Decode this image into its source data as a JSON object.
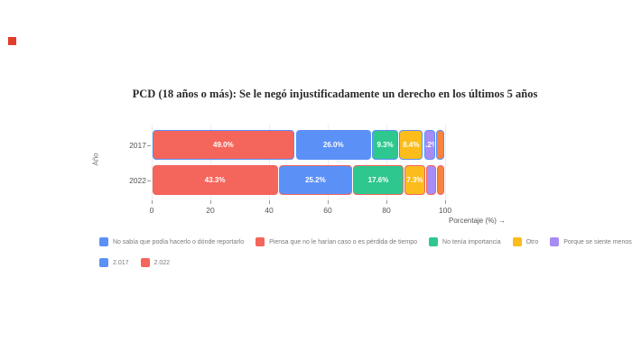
{
  "ui": {
    "corner_marker_color": "#e23c2a"
  },
  "chart_data": {
    "type": "bar",
    "orientation": "horizontal",
    "stacked": true,
    "title": "PCD (18 años o más): Se le negó injustificadamente un derecho en los últimos 5 años",
    "xlabel": "Porcentaje (%) →",
    "ylabel": "Año",
    "xlim": [
      0,
      100
    ],
    "grid": true,
    "x_ticks": [
      0,
      20,
      40,
      60,
      80,
      100
    ],
    "categories": [
      {
        "label": "2017",
        "outline_color": "#5B90F7",
        "legend_label": "2.017"
      },
      {
        "label": "2022",
        "outline_color": "#F4655C",
        "legend_label": "2.022"
      }
    ],
    "series": [
      {
        "name": "Piensa que no le harían caso o es pérdida de tiempo",
        "color": "#F4655C",
        "values": [
          49.0,
          43.3
        ],
        "value_labels": [
          "49.0%",
          "43.3%"
        ]
      },
      {
        "name": "No sabía que podía hacerlo o dónde reportarlo",
        "color": "#5B90F7",
        "values": [
          26.0,
          25.2
        ],
        "value_labels": [
          "26.0%",
          "25.2%"
        ]
      },
      {
        "name": "No tenía importancia",
        "color": "#2EC78E",
        "values": [
          9.3,
          17.6
        ],
        "value_labels": [
          "9.3%",
          "17.6%"
        ]
      },
      {
        "name": "Otro",
        "color": "#FBBC1C",
        "values": [
          8.4,
          7.3
        ],
        "value_labels": [
          "8.4%",
          "7.3%"
        ]
      },
      {
        "name": "Porque se siente menos",
        "color": "#A78CF5",
        "values": [
          4.2,
          3.7
        ],
        "value_labels": [
          "4.2%",
          ""
        ]
      },
      {
        "name": "Por temor",
        "color": "#F6833F",
        "values": [
          3.1,
          2.9
        ],
        "value_labels": [
          "",
          ""
        ]
      }
    ],
    "legend": {
      "position": "bottom",
      "rows": [
        [
          {
            "label": "No sabía que podía hacerlo o dónde reportarlo",
            "color": "#5B90F7"
          },
          {
            "label": "Piensa que no le harían caso o es pérdida de tiempo",
            "color": "#F4655C"
          },
          {
            "label": "No tenía importancia",
            "color": "#2EC78E"
          },
          {
            "label": "Otro",
            "color": "#FBBC1C"
          },
          {
            "label": "Porque se siente menos",
            "color": "#A78CF5"
          },
          {
            "label": "Por temor",
            "color": "#F6833F"
          }
        ],
        [
          {
            "label": "2.017",
            "color": "#5B90F7"
          },
          {
            "label": "2.022",
            "color": "#F4655C"
          }
        ]
      ]
    }
  }
}
